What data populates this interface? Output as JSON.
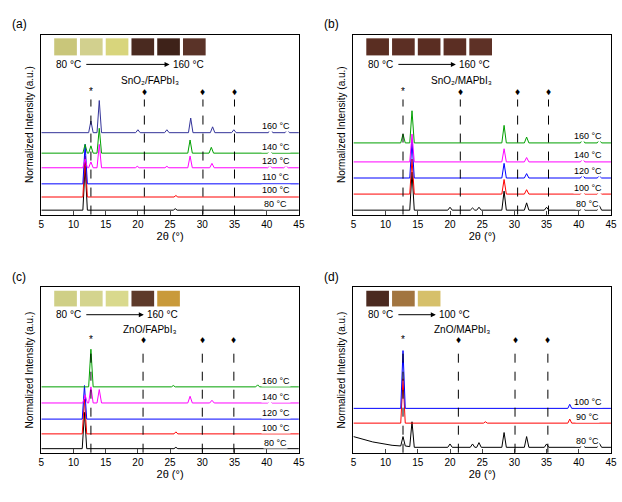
{
  "chart_data": [
    {
      "type": "line",
      "panel": "(a)",
      "title": "SnO₂/FAPbI₃",
      "x_label": "2θ (°)",
      "y_label": "Normalized Intensity (a.u.)",
      "xlim": [
        5,
        45
      ],
      "xticks": [
        5,
        10,
        15,
        20,
        25,
        30,
        35,
        40,
        45
      ],
      "ylim": [
        -0.3,
        12
      ],
      "yticks": [],
      "tick_labels": "x",
      "films": {
        "colors": [
          "#c9c67a",
          "#d2d08e",
          "#d8d57c",
          "#4a2a20",
          "#3e2219",
          "#5a3328"
        ],
        "from": "80 °C",
        "to": "160 °C"
      },
      "reference_lines": [
        {
          "x": 12.7,
          "label": "*"
        },
        {
          "x": 21.0,
          "label": "♦"
        },
        {
          "x": 30.1,
          "label": "♦"
        },
        {
          "x": 35.0,
          "label": "♦"
        }
      ],
      "series": [
        {
          "name": "80 °C",
          "color": "#000000",
          "x": [
            5,
            11.45,
            11.8,
            12.15,
            25.5,
            25.8,
            26.1,
            38.2,
            38.5,
            38.8,
            45
          ],
          "values": [
            0,
            0,
            3.0,
            0,
            0,
            0.1,
            0,
            0,
            0.05,
            0,
            0
          ]
        },
        {
          "name": "100 °C",
          "color": "#ff0000",
          "x": [
            5,
            11.45,
            11.8,
            12.15,
            25.6,
            25.9,
            26.2,
            45
          ],
          "values": [
            0.9,
            0.9,
            3.7,
            0.9,
            0.9,
            1.0,
            0.9,
            0.9
          ]
        },
        {
          "name": "110 °C",
          "color": "#0000ff",
          "x": [
            5,
            11.45,
            11.8,
            12.15,
            45
          ],
          "values": [
            1.8,
            1.8,
            4.5,
            1.8,
            1.8
          ]
        },
        {
          "name": "120 °C",
          "color": "#ff00ff",
          "x": [
            5,
            11.45,
            11.8,
            12.15,
            12.35,
            12.7,
            13.05,
            13.65,
            14.0,
            14.35,
            19.6,
            19.9,
            20.2,
            24.2,
            24.5,
            24.8,
            27.75,
            28.1,
            28.45,
            31.15,
            31.5,
            31.85,
            40.15,
            40.5,
            40.85,
            42.65,
            43.0,
            43.35,
            45
          ],
          "values": [
            2.9,
            2.9,
            3.5,
            2.9,
            2.9,
            3.3,
            2.9,
            2.9,
            4.5,
            2.9,
            2.9,
            3.0,
            2.9,
            2.9,
            3.0,
            2.9,
            2.9,
            3.7,
            2.9,
            2.9,
            3.2,
            2.9,
            2.9,
            3.05,
            2.9,
            2.9,
            3.05,
            2.9,
            2.9
          ]
        },
        {
          "name": "140 °C",
          "color": "#00a000",
          "x": [
            5,
            11.45,
            11.8,
            12.15,
            12.35,
            12.7,
            13.05,
            13.65,
            14.0,
            14.35,
            27.75,
            28.1,
            28.45,
            31.05,
            31.4,
            31.75,
            40.15,
            40.5,
            40.85,
            45
          ],
          "values": [
            3.9,
            3.9,
            4.5,
            3.9,
            3.9,
            4.4,
            3.9,
            3.9,
            5.6,
            3.9,
            3.9,
            4.8,
            3.9,
            3.9,
            4.3,
            3.9,
            3.9,
            4.1,
            3.9,
            3.9
          ]
        },
        {
          "name": "160 °C",
          "color": "#333399",
          "x": [
            5,
            12.35,
            12.7,
            13.05,
            13.65,
            14.0,
            14.35,
            19.65,
            20.0,
            20.35,
            24.15,
            24.5,
            24.85,
            27.85,
            28.2,
            28.55,
            31.25,
            31.6,
            31.95,
            34.55,
            34.9,
            35.25,
            40.25,
            40.6,
            40.95,
            42.85,
            43.2,
            43.55,
            45
          ],
          "values": [
            5.3,
            5.3,
            6.1,
            5.3,
            5.3,
            7.5,
            5.3,
            5.3,
            5.5,
            5.3,
            5.3,
            5.5,
            5.3,
            5.3,
            6.3,
            5.3,
            5.3,
            5.7,
            5.3,
            5.3,
            5.5,
            5.3,
            5.3,
            5.6,
            5.3,
            5.3,
            5.5,
            5.3,
            5.3
          ]
        }
      ]
    },
    {
      "type": "line",
      "panel": "(b)",
      "title": "SnO₂/MAPbI₃",
      "x_label": "2θ (°)",
      "y_label": "Normalized Intensity (a.u.)",
      "xlim": [
        5,
        45
      ],
      "xticks": [
        5,
        10,
        15,
        20,
        25,
        30,
        35,
        40,
        45
      ],
      "ylim": [
        -0.3,
        12
      ],
      "yticks": [],
      "tick_labels": "x",
      "films": {
        "colors": [
          "#5a2e22",
          "#5c2f24",
          "#5a2d22",
          "#5b2e23",
          "#5e3126"
        ],
        "from": "80 °C",
        "to": "160 °C"
      },
      "reference_lines": [
        {
          "x": 12.7,
          "label": "*"
        },
        {
          "x": 21.6,
          "label": "♦"
        },
        {
          "x": 30.5,
          "label": "♦"
        },
        {
          "x": 35.3,
          "label": "♦"
        }
      ],
      "series": [
        {
          "name": "80 °C",
          "color": "#000000",
          "x": [
            5,
            13.75,
            14.1,
            14.45,
            19.65,
            20.0,
            20.35,
            23.15,
            23.5,
            23.85,
            24.15,
            24.5,
            24.85,
            28.05,
            28.4,
            28.75,
            31.55,
            31.9,
            32.25,
            34.65,
            35.0,
            35.35,
            40.25,
            40.6,
            40.95,
            42.85,
            43.2,
            43.55,
            45
          ],
          "values": [
            0,
            0,
            2.6,
            0,
            0,
            0.2,
            0,
            0,
            0.15,
            0,
            0,
            0.2,
            0,
            0,
            1.3,
            0,
            0,
            0.5,
            0,
            0,
            0.2,
            0,
            0,
            0.35,
            0,
            0,
            0.3,
            0,
            0
          ]
        },
        {
          "name": "100 °C",
          "color": "#ff0000",
          "x": [
            5,
            13.75,
            14.1,
            14.45,
            28.05,
            28.4,
            28.75,
            31.55,
            31.9,
            32.25,
            40.25,
            40.6,
            40.95,
            42.85,
            43.2,
            43.55,
            45
          ],
          "values": [
            1.1,
            1.1,
            3.5,
            1.1,
            1.1,
            2.1,
            1.1,
            1.1,
            1.4,
            1.1,
            1.1,
            1.3,
            1.1,
            1.1,
            1.3,
            1.1,
            1.1
          ]
        },
        {
          "name": "120 °C",
          "color": "#0000ff",
          "x": [
            5,
            13.75,
            14.1,
            14.45,
            28.05,
            28.4,
            28.75,
            31.55,
            31.9,
            32.25,
            40.25,
            40.6,
            40.95,
            42.85,
            43.2,
            43.55,
            45
          ],
          "values": [
            2.2,
            2.2,
            4.7,
            2.2,
            2.2,
            3.2,
            2.2,
            2.2,
            2.5,
            2.2,
            2.2,
            2.4,
            2.2,
            2.2,
            2.35,
            2.2,
            2.2
          ]
        },
        {
          "name": "140 °C",
          "color": "#ff00ff",
          "x": [
            5,
            13.75,
            14.1,
            14.45,
            28.05,
            28.4,
            28.75,
            31.55,
            31.9,
            32.25,
            40.25,
            40.6,
            40.95,
            45
          ],
          "values": [
            3.3,
            3.3,
            5.2,
            3.3,
            3.3,
            4.2,
            3.3,
            3.3,
            3.6,
            3.3,
            3.3,
            3.5,
            3.3,
            3.3
          ]
        },
        {
          "name": "160 °C",
          "color": "#00a000",
          "x": [
            5,
            12.35,
            12.7,
            13.05,
            13.75,
            14.1,
            14.45,
            28.05,
            28.4,
            28.75,
            31.55,
            31.9,
            32.25,
            40.25,
            40.6,
            40.95,
            42.85,
            43.2,
            43.55,
            45
          ],
          "values": [
            4.6,
            4.6,
            5.2,
            4.6,
            4.6,
            6.8,
            4.6,
            4.6,
            5.8,
            4.6,
            4.6,
            5.0,
            4.6,
            4.6,
            4.85,
            4.6,
            4.6,
            4.8,
            4.6,
            4.6
          ]
        }
      ]
    },
    {
      "type": "line",
      "panel": "(c)",
      "title": "ZnO/FAPbI₃",
      "x_label": "2θ (°)",
      "y_label": "Normalized Intensity (a.u.)",
      "xlim": [
        5,
        45
      ],
      "xticks": [
        5,
        10,
        15,
        20,
        25,
        30,
        35,
        40,
        45
      ],
      "ylim": [
        -0.3,
        12
      ],
      "yticks": [],
      "tick_labels": "x",
      "films": {
        "colors": [
          "#cfcf86",
          "#d4d48e",
          "#d9d98d",
          "#5e3a2a",
          "#c99a3a"
        ],
        "from": "80 °C",
        "to": "160 °C"
      },
      "reference_lines": [
        {
          "x": 12.7,
          "label": "*"
        },
        {
          "x": 20.8,
          "label": "♦"
        },
        {
          "x": 30.0,
          "label": "♦"
        },
        {
          "x": 34.9,
          "label": "♦"
        }
      ],
      "series": [
        {
          "name": "80 °C",
          "color": "#000000",
          "x": [
            5,
            11.35,
            11.7,
            12.05,
            25.6,
            25.9,
            26.2,
            45
          ],
          "values": [
            0,
            0,
            2.7,
            0,
            0,
            0.1,
            0,
            0
          ]
        },
        {
          "name": "100 °C",
          "color": "#ff0000",
          "x": [
            5,
            11.35,
            11.7,
            12.05,
            25.6,
            25.9,
            26.2,
            45
          ],
          "values": [
            1.1,
            1.1,
            3.7,
            1.1,
            1.1,
            1.25,
            1.1,
            1.1
          ]
        },
        {
          "name": "120 °C",
          "color": "#0000ff",
          "x": [
            5,
            11.35,
            11.7,
            12.05,
            45
          ],
          "values": [
            2.2,
            2.2,
            4.7,
            2.2,
            2.2
          ]
        },
        {
          "name": "140 °C",
          "color": "#ff00ff",
          "x": [
            5,
            11.45,
            11.8,
            12.15,
            12.35,
            12.7,
            13.05,
            13.65,
            14.0,
            14.35,
            27.75,
            28.1,
            28.45,
            31.15,
            31.5,
            31.85,
            40.15,
            40.5,
            40.85,
            45
          ],
          "values": [
            3.4,
            3.4,
            4.0,
            3.4,
            3.4,
            4.6,
            3.4,
            3.4,
            4.4,
            3.4,
            3.4,
            3.9,
            3.4,
            3.4,
            3.6,
            3.4,
            3.4,
            3.55,
            3.4,
            3.4
          ]
        },
        {
          "name": "160 °C",
          "color": "#00a000",
          "x": [
            5,
            12.35,
            12.7,
            13.05,
            25.2,
            25.5,
            25.8,
            38.3,
            38.6,
            38.9,
            45
          ],
          "values": [
            4.6,
            4.6,
            7.4,
            4.6,
            4.6,
            4.7,
            4.6,
            4.6,
            4.75,
            4.6,
            4.6
          ]
        }
      ]
    },
    {
      "type": "line",
      "panel": "(d)",
      "title": "ZnO/MAPbI₃",
      "x_label": "2θ (°)",
      "y_label": "Normalized Intensity (a.u.)",
      "xlim": [
        5,
        45
      ],
      "xticks": [
        5,
        10,
        15,
        20,
        25,
        30,
        35,
        40,
        45
      ],
      "ylim": [
        -0.3,
        12
      ],
      "yticks": [],
      "tick_labels": "x",
      "films": {
        "colors": [
          "#4b2a20",
          "#a27540",
          "#d6c06a"
        ],
        "from": "80 °C",
        "to": "100 °C"
      },
      "reference_lines": [
        {
          "x": 12.7,
          "label": "*"
        },
        {
          "x": 21.3,
          "label": "♦"
        },
        {
          "x": 30.1,
          "label": "♦"
        },
        {
          "x": 35.2,
          "label": "♦"
        }
      ],
      "series": [
        {
          "name": "80 °C",
          "color": "#000000",
          "x": [
            5,
            8,
            11,
            12.35,
            12.7,
            13.05,
            13.75,
            14.1,
            14.45,
            19.65,
            20.0,
            20.35,
            23.15,
            23.5,
            23.85,
            24.15,
            24.5,
            24.85,
            28.05,
            28.4,
            28.75,
            31.55,
            31.9,
            32.25,
            34.65,
            35.0,
            35.35,
            40.25,
            40.6,
            40.95,
            42.85,
            43.2,
            43.55,
            45
          ],
          "values": [
            0.9,
            0.5,
            0.25,
            0.2,
            0.9,
            0.2,
            0.15,
            2.0,
            0.1,
            0.1,
            0.35,
            0.1,
            0.1,
            0.35,
            0.1,
            0.1,
            0.45,
            0.1,
            0.1,
            1.2,
            0.1,
            0.1,
            0.9,
            0.1,
            0.1,
            0.35,
            0.1,
            0.1,
            0.5,
            0.1,
            0.1,
            0.4,
            0.1,
            0.1
          ]
        },
        {
          "name": "90 °C",
          "color": "#ff0000",
          "x": [
            5,
            12.35,
            12.7,
            13.05,
            25.2,
            25.5,
            25.8,
            38.3,
            38.6,
            38.9,
            45
          ],
          "values": [
            1.9,
            1.9,
            5.2,
            1.9,
            1.9,
            2.0,
            1.9,
            1.9,
            2.2,
            1.9,
            1.9
          ]
        },
        {
          "name": "100 °C",
          "color": "#0000ff",
          "x": [
            5,
            12.35,
            12.7,
            13.05,
            38.3,
            38.6,
            38.9,
            45
          ],
          "values": [
            3.0,
            3.0,
            7.3,
            3.0,
            3.0,
            3.3,
            3.0,
            3.0
          ]
        }
      ]
    }
  ]
}
